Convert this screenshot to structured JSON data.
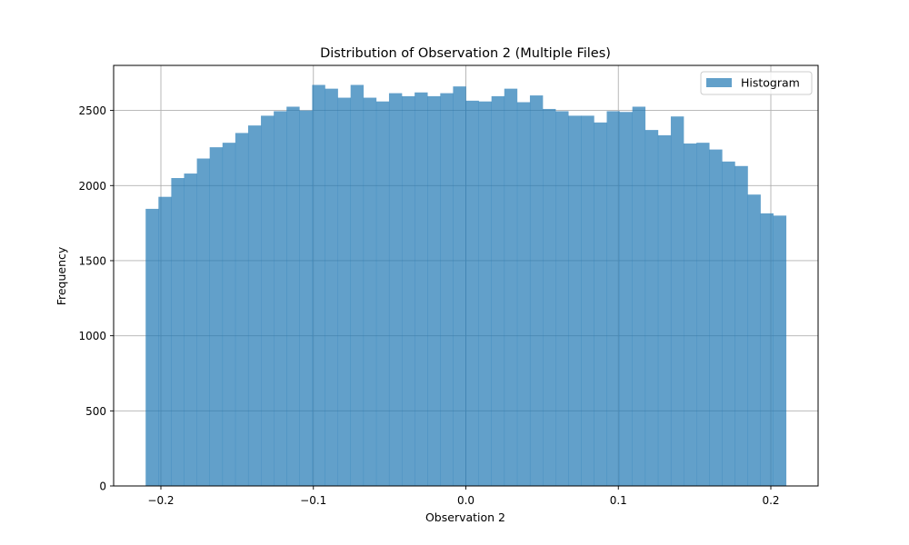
{
  "chart_data": {
    "type": "bar",
    "title": "Distribution of Observation 2 (Multiple Files)",
    "xlabel": "Observation 2",
    "ylabel": "Frequency",
    "xlim": [
      -0.231,
      0.231
    ],
    "ylim": [
      0,
      2800
    ],
    "x_ticks": [
      -0.2,
      -0.1,
      0.0,
      0.1,
      0.2
    ],
    "x_tick_labels": [
      "−0.2",
      "−0.1",
      "0.0",
      "0.1",
      "0.2"
    ],
    "y_ticks": [
      0,
      500,
      1000,
      1500,
      2000,
      2500
    ],
    "y_tick_labels": [
      "0",
      "500",
      "1000",
      "1500",
      "2000",
      "2500"
    ],
    "grid": true,
    "legend": {
      "position": "top-right",
      "entries": [
        "Histogram"
      ]
    },
    "color": "#1f77b4",
    "bin_start": -0.21,
    "bin_end": 0.21,
    "series": [
      {
        "name": "Histogram",
        "values": [
          1845,
          1925,
          2050,
          2080,
          2180,
          2255,
          2285,
          2350,
          2400,
          2465,
          2495,
          2525,
          2500,
          2670,
          2645,
          2585,
          2670,
          2585,
          2560,
          2615,
          2595,
          2620,
          2595,
          2615,
          2660,
          2565,
          2560,
          2595,
          2645,
          2555,
          2600,
          2510,
          2495,
          2465,
          2465,
          2420,
          2495,
          2490,
          2525,
          2370,
          2335,
          2460,
          2280,
          2285,
          2240,
          2160,
          2130,
          1940,
          1815,
          1800
        ]
      }
    ]
  }
}
